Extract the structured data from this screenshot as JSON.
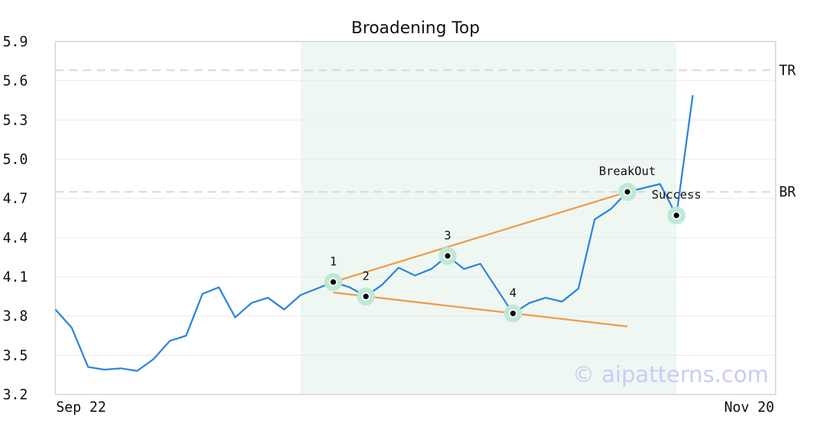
{
  "chart_data": {
    "type": "line",
    "title": "Broadening Top",
    "x_tick_labels": [
      "Sep 22",
      "Nov 20"
    ],
    "y_ticks": [
      "3.2",
      "3.5",
      "3.8",
      "4.1",
      "4.4",
      "4.7",
      "5.0",
      "5.3",
      "5.6",
      "5.9"
    ],
    "ylim": [
      3.2,
      5.9
    ],
    "grid": "horizontal",
    "series": [
      {
        "color": "#2e86de",
        "values": [
          3.85,
          3.71,
          3.41,
          3.39,
          3.4,
          3.38,
          3.47,
          3.61,
          3.65,
          3.97,
          4.02,
          3.79,
          3.9,
          3.94,
          3.85,
          3.96,
          4.01,
          4.06,
          4.02,
          3.95,
          4.04,
          4.17,
          4.11,
          4.16,
          4.26,
          4.16,
          4.2,
          4.01,
          3.82,
          3.9,
          3.94,
          3.91,
          4.01,
          4.54,
          4.62,
          4.75,
          4.78,
          4.81,
          4.57,
          5.49
        ]
      }
    ],
    "highlight_region": {
      "from_index": 15,
      "to_index": 38,
      "color": "#eff7f3"
    },
    "levels": [
      {
        "label": "TR",
        "value": 5.68
      },
      {
        "label": "BR",
        "value": 4.75
      }
    ],
    "trendlines": [
      {
        "color": "#f39c44",
        "from": {
          "index": 17,
          "value": 4.06
        },
        "to": {
          "index": 35,
          "value": 4.75
        }
      },
      {
        "color": "#f39c44",
        "from": {
          "index": 17,
          "value": 3.98
        },
        "to": {
          "index": 35,
          "value": 3.72
        }
      }
    ],
    "annotations": [
      {
        "label": "1",
        "index": 17,
        "value": 4.06
      },
      {
        "label": "2",
        "index": 19,
        "value": 3.95
      },
      {
        "label": "3",
        "index": 24,
        "value": 4.26
      },
      {
        "label": "4",
        "index": 28,
        "value": 3.82
      },
      {
        "label": "BreakOut",
        "index": 35,
        "value": 4.75
      },
      {
        "label": "Success",
        "index": 38,
        "value": 4.57
      }
    ],
    "watermark": "© aipatterns.com"
  }
}
